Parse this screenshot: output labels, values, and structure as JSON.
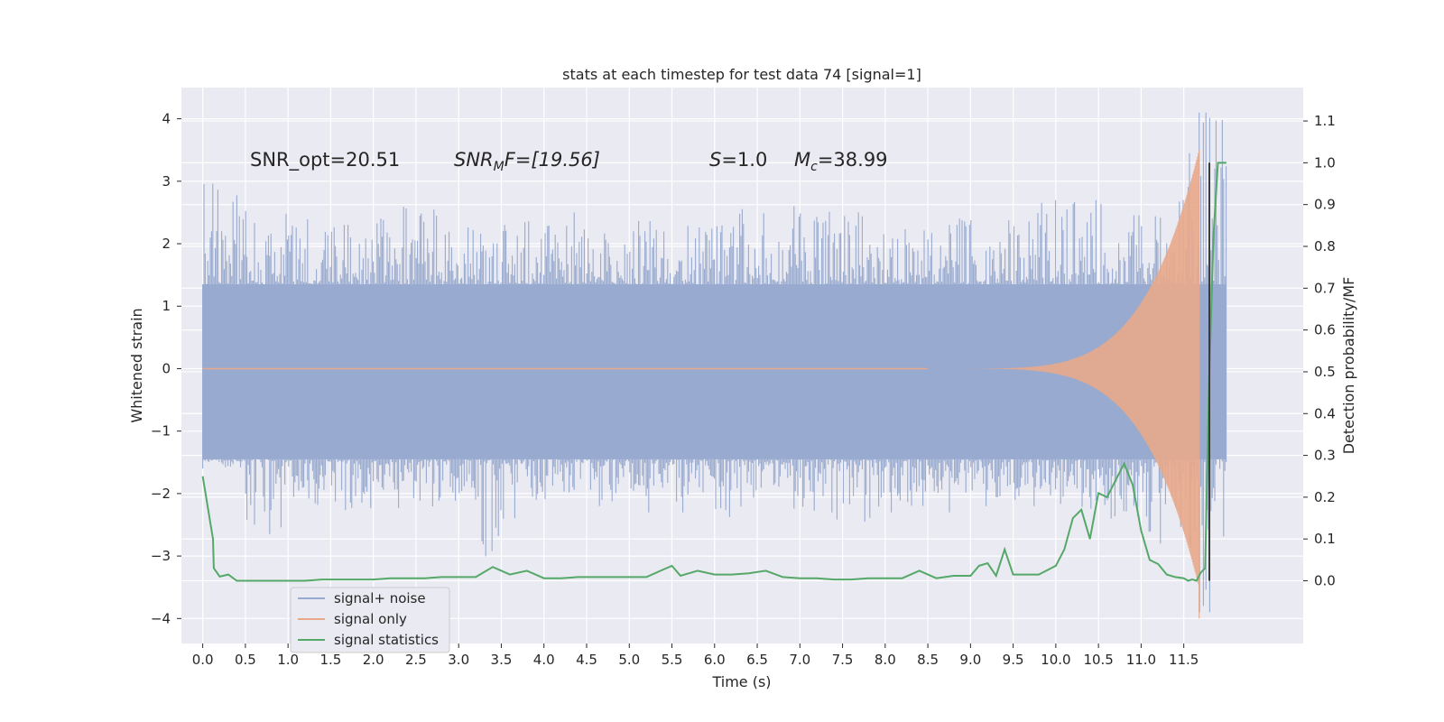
{
  "chart_data": {
    "type": "line",
    "title": "stats at each timestep for test data 74 [signal=1]",
    "xlabel": "Time (s)",
    "ylabel": "Whitened strain",
    "y2label": "Detection probability/MF",
    "xlim": [
      -0.25,
      12.9
    ],
    "ylim": [
      -4.4,
      4.5
    ],
    "y2lim": [
      -0.15,
      1.18
    ],
    "x_ticks": [
      0.0,
      0.5,
      1.0,
      1.5,
      2.0,
      2.5,
      3.0,
      3.5,
      4.0,
      4.5,
      5.0,
      5.5,
      6.0,
      6.5,
      7.0,
      7.5,
      8.0,
      8.5,
      9.0,
      9.5,
      10.0,
      10.5,
      11.0,
      11.5
    ],
    "x_tick_labels": [
      "0.0",
      "0.5",
      "1.0",
      "1.5",
      "2.0",
      "2.5",
      "3.0",
      "3.5",
      "4.0",
      "4.5",
      "5.0",
      "5.5",
      "6.0",
      "6.5",
      "7.0",
      "7.5",
      "8.0",
      "8.5",
      "9.0",
      "9.5",
      "10.0",
      "10.5",
      "11.0",
      "11.5"
    ],
    "y_ticks": [
      4,
      3,
      2,
      1,
      0,
      -1,
      -2,
      -3,
      -4
    ],
    "y_tick_labels": [
      "4",
      "3",
      "2",
      "1",
      "0",
      "−1",
      "−2",
      "−3",
      "−4"
    ],
    "y2_ticks": [
      1.1,
      1.0,
      0.9,
      0.8,
      0.7,
      0.6,
      0.5,
      0.4,
      0.3,
      0.2,
      0.1,
      0.0
    ],
    "y2_tick_labels": [
      "1.1",
      "1.0",
      "0.9",
      "0.8",
      "0.7",
      "0.6",
      "0.5",
      "0.4",
      "0.3",
      "0.2",
      "0.1",
      "0.0"
    ],
    "grid": true,
    "legend_position": "lower-left",
    "annotations": {
      "snr_opt": "SNR_opt=20.51",
      "snr_mf_symbol": "SNR",
      "snr_mf_sub": "M",
      "snr_mf_rest": "F=[19.56]",
      "s_symbol": "S",
      "s_rest": "=1.0",
      "mc_symbol": "M",
      "mc_sub": "c",
      "mc_rest": "=38.99"
    },
    "series": [
      {
        "name": "signal+ noise",
        "color": "#98aacf",
        "axis": "left",
        "x_range": [
          0.0,
          12.0
        ],
        "band_low": -1.45,
        "band_high": 1.35,
        "peak_values": [
          3.1,
          2.6,
          2.5,
          2.3,
          2.4,
          2.6,
          2.3,
          2.3,
          2.5,
          2.5,
          2.2,
          2.4,
          2.4,
          2.7,
          2.5,
          2.6,
          2.5,
          2.3,
          2.3,
          2.4,
          2.4,
          2.7,
          2.7,
          2.5,
          2.7,
          4.1
        ],
        "trough_values": [
          -1.6,
          -2.7,
          -2.2,
          -2.3,
          -2.3,
          -2.5,
          -2.2,
          -3.1,
          -2.1,
          -2.0,
          -2.2,
          -2.3,
          -2.3,
          -2.4,
          -2.2,
          -2.3,
          -2.5,
          -2.3,
          -2.3,
          -2.2,
          -2.1,
          -2.2,
          -2.3,
          -2.4,
          -2.8,
          -3.9
        ]
      },
      {
        "name": "signal only",
        "color": "#e8a88a",
        "axis": "left",
        "chirp_start": 8.5,
        "chirp_peak_time": 11.68,
        "chirp_peak_amp": 3.5,
        "chirp_min_amp": -4.0
      },
      {
        "name": "signal statistics",
        "color": "#55a868",
        "axis": "right",
        "x": [
          0.0,
          0.12,
          0.13,
          0.2,
          0.3,
          0.4,
          0.5,
          0.6,
          0.8,
          1.0,
          1.2,
          1.4,
          1.6,
          1.8,
          2.0,
          2.2,
          2.4,
          2.6,
          2.8,
          3.0,
          3.2,
          3.4,
          3.6,
          3.8,
          4.0,
          4.2,
          4.4,
          4.6,
          4.8,
          5.0,
          5.2,
          5.4,
          5.5,
          5.6,
          5.8,
          6.0,
          6.2,
          6.4,
          6.6,
          6.8,
          7.0,
          7.2,
          7.4,
          7.6,
          7.8,
          8.0,
          8.2,
          8.4,
          8.6,
          8.8,
          9.0,
          9.1,
          9.2,
          9.3,
          9.4,
          9.5,
          9.6,
          9.8,
          10.0,
          10.1,
          10.2,
          10.3,
          10.4,
          10.5,
          10.6,
          10.7,
          10.8,
          10.9,
          11.0,
          11.1,
          11.2,
          11.3,
          11.4,
          11.5,
          11.55,
          11.6,
          11.65,
          11.7,
          11.75,
          11.8,
          11.85,
          11.9,
          12.0
        ],
        "y": [
          0.25,
          0.1,
          0.03,
          0.01,
          0.015,
          0.0,
          0.0,
          0.0,
          0.0,
          0.0,
          0.0,
          0.003,
          0.003,
          0.003,
          0.003,
          0.006,
          0.006,
          0.006,
          0.009,
          0.009,
          0.009,
          0.033,
          0.015,
          0.024,
          0.006,
          0.006,
          0.009,
          0.009,
          0.009,
          0.009,
          0.009,
          0.027,
          0.036,
          0.012,
          0.024,
          0.015,
          0.015,
          0.018,
          0.024,
          0.009,
          0.006,
          0.006,
          0.003,
          0.003,
          0.006,
          0.006,
          0.006,
          0.024,
          0.006,
          0.012,
          0.012,
          0.036,
          0.042,
          0.012,
          0.075,
          0.015,
          0.015,
          0.015,
          0.036,
          0.075,
          0.15,
          0.17,
          0.1,
          0.21,
          0.2,
          0.24,
          0.28,
          0.23,
          0.12,
          0.05,
          0.04,
          0.015,
          0.009,
          0.006,
          0.0,
          0.003,
          0.0,
          0.02,
          0.03,
          0.5,
          0.83,
          1.0,
          1.0
        ]
      },
      {
        "name": "detection marker",
        "color": "#3a3a3a",
        "axis": "right",
        "x": [
          11.8,
          11.8
        ],
        "y": [
          0.0,
          1.0
        ]
      }
    ]
  },
  "legend": {
    "items": [
      {
        "label": "signal+ noise",
        "color": "#98aacf"
      },
      {
        "label": "signal only",
        "color": "#e8a88a"
      },
      {
        "label": "signal statistics",
        "color": "#55a868"
      }
    ]
  }
}
